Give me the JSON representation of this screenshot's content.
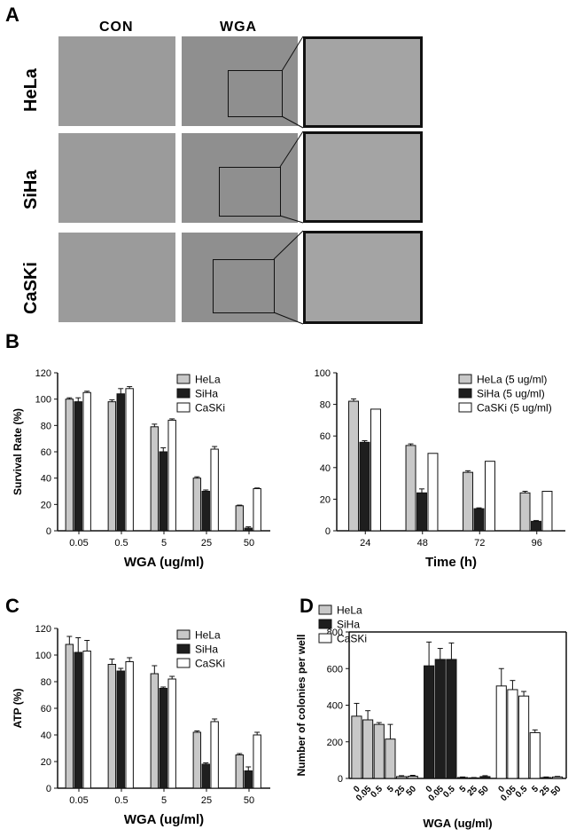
{
  "panelA": {
    "letter": "A",
    "columns": [
      "CON",
      "WGA"
    ],
    "rows": [
      "HeLa",
      "SiHa",
      "CaSKi"
    ]
  },
  "panelB": {
    "letter": "B"
  },
  "panelC": {
    "letter": "C"
  },
  "panelD": {
    "letter": "D"
  },
  "colors": {
    "HeLa": "#c8c8c8",
    "SiHa": "#1e1e1e",
    "CaSKi": "#ffffff",
    "stroke": "#111111"
  },
  "chart_data": [
    {
      "id": "B-left",
      "type": "bar",
      "categories": [
        "0.05",
        "0.5",
        "5",
        "25",
        "50"
      ],
      "series": [
        {
          "name": "HeLa",
          "values": [
            100,
            98,
            79,
            40,
            19
          ],
          "errors": [
            1,
            1.5,
            2,
            1,
            0.5
          ]
        },
        {
          "name": "SiHa",
          "values": [
            98,
            104,
            60,
            30,
            2
          ],
          "errors": [
            3,
            4,
            3,
            1,
            1
          ]
        },
        {
          "name": "CaSKi",
          "values": [
            105,
            108,
            84,
            62,
            32
          ],
          "errors": [
            1,
            1.5,
            1,
            2,
            0.5
          ]
        }
      ],
      "xlabel": "WGA (ug/ml)",
      "ylabel": "Survival Rate (%)",
      "ylim": [
        0,
        120
      ],
      "yticks": [
        0,
        20,
        40,
        60,
        80,
        100,
        120
      ],
      "legend": "top-right"
    },
    {
      "id": "B-right",
      "type": "bar",
      "categories": [
        "24",
        "48",
        "72",
        "96"
      ],
      "series": [
        {
          "name": "HeLa (5 ug/ml)",
          "values": [
            82,
            54,
            37,
            24
          ],
          "errors": [
            1.5,
            1,
            1,
            1
          ]
        },
        {
          "name": "SiHa (5 ug/ml)",
          "values": [
            56,
            24,
            14,
            6
          ],
          "errors": [
            1,
            2.5,
            0.5,
            0.5
          ]
        },
        {
          "name": "CaSKi (5 ug/ml)",
          "values": [
            77,
            49,
            44,
            25
          ],
          "errors": [
            0,
            0,
            0,
            0
          ]
        }
      ],
      "xlabel": "Time (h)",
      "ylabel": "",
      "ylim": [
        0,
        100
      ],
      "yticks": [
        0,
        20,
        40,
        60,
        80,
        100
      ],
      "legend": "top-right"
    },
    {
      "id": "C",
      "type": "bar",
      "categories": [
        "0.05",
        "0.5",
        "5",
        "25",
        "50"
      ],
      "series": [
        {
          "name": "HeLa",
          "values": [
            108,
            93,
            86,
            42,
            25
          ],
          "errors": [
            6,
            4,
            6,
            1,
            1
          ]
        },
        {
          "name": "SiHa",
          "values": [
            102,
            88,
            75,
            18,
            13
          ],
          "errors": [
            11,
            2,
            1,
            1,
            3
          ]
        },
        {
          "name": "CaSKi",
          "values": [
            103,
            95,
            82,
            50,
            40
          ],
          "errors": [
            8,
            3,
            2,
            2,
            2
          ]
        }
      ],
      "xlabel": "WGA (ug/ml)",
      "ylabel": "ATP (%)",
      "ylim": [
        0,
        120
      ],
      "yticks": [
        0,
        20,
        40,
        60,
        80,
        100,
        120
      ],
      "legend": "top-right"
    },
    {
      "id": "D",
      "type": "bar",
      "categories": [
        "0",
        "0.05",
        "0.5",
        "5",
        "25",
        "50"
      ],
      "series": [
        {
          "name": "HeLa",
          "values": [
            340,
            320,
            295,
            215,
            10,
            12
          ],
          "errors": [
            70,
            50,
            10,
            80,
            5,
            5
          ]
        },
        {
          "name": "SiHa",
          "values": [
            615,
            650,
            650,
            5,
            3,
            10
          ],
          "errors": [
            130,
            60,
            90,
            3,
            2,
            5
          ]
        },
        {
          "name": "CaSKi",
          "values": [
            505,
            485,
            450,
            250,
            5,
            8
          ],
          "errors": [
            95,
            50,
            25,
            15,
            3,
            3
          ]
        }
      ],
      "xlabel": "WGA (ug/ml)",
      "ylabel": "Number of colonies per well",
      "ylim": [
        0,
        800
      ],
      "yticks": [
        0,
        200,
        400,
        600,
        800
      ],
      "legend": "top-left"
    }
  ]
}
